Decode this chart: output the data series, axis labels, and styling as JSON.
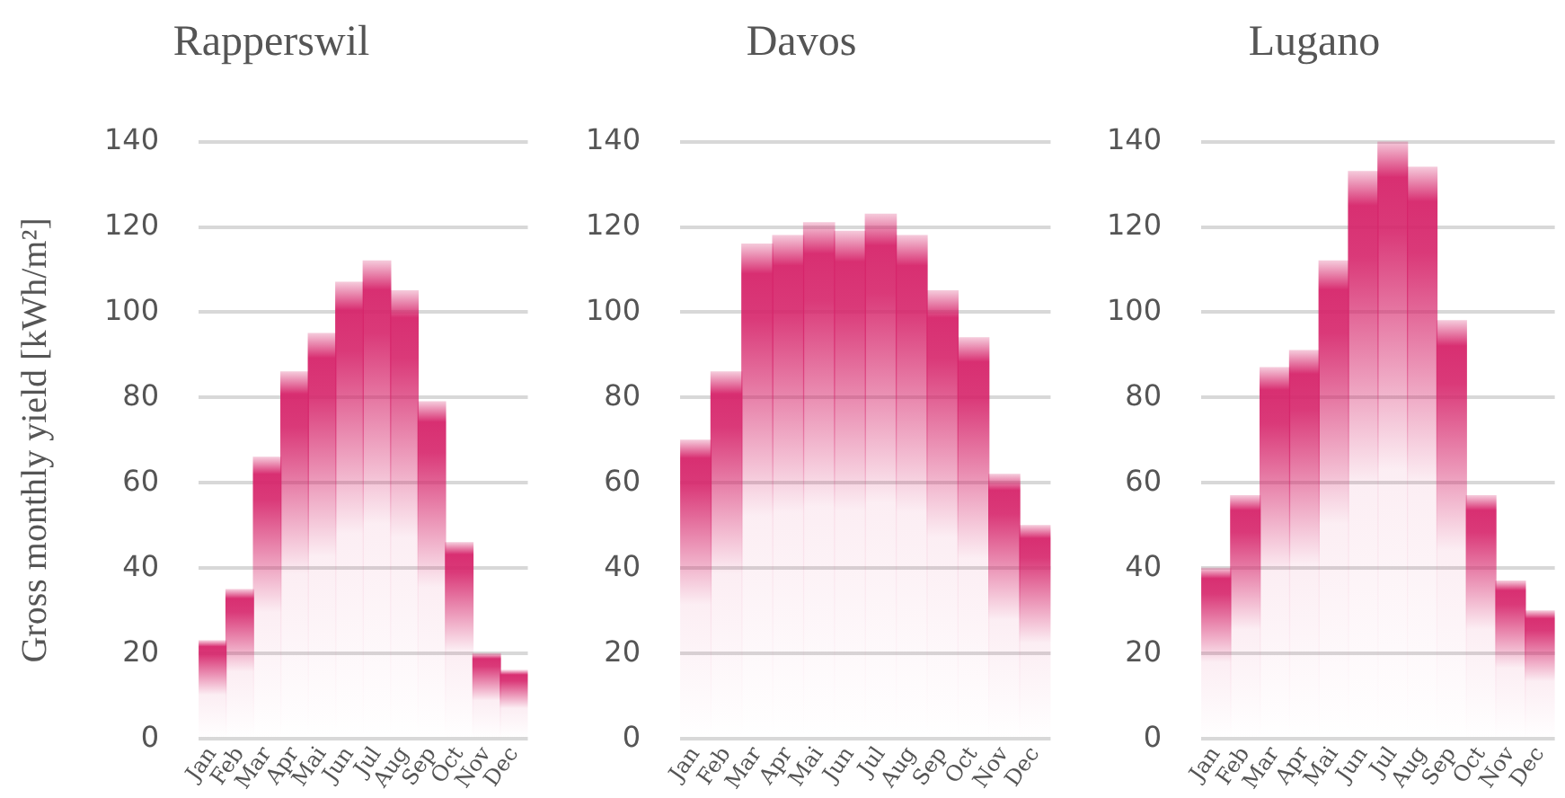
{
  "chart_data": [
    {
      "type": "bar",
      "title": "Rapperswil",
      "ylabel": "Gross monthly yield [kWh/m²]",
      "categories": [
        "Jan",
        "Feb",
        "Mar",
        "Apr",
        "Mai",
        "Jun",
        "Jul",
        "Aug",
        "Sep",
        "Oct",
        "Nov",
        "Dec"
      ],
      "color": "#d6246a",
      "values": [
        23,
        35,
        66,
        86,
        95,
        107,
        112,
        105,
        79,
        46,
        20,
        16
      ],
      "ylim": [
        0,
        140
      ],
      "yticks": [
        0,
        20,
        40,
        60,
        80,
        100,
        120,
        140
      ],
      "grid": "y"
    },
    {
      "type": "bar",
      "title": "Davos",
      "categories": [
        "Jan",
        "Feb",
        "Mar",
        "Apr",
        "Mai",
        "Jun",
        "Jul",
        "Aug",
        "Sep",
        "Oct",
        "Nov",
        "Dec"
      ],
      "color": "#d6246a",
      "values": [
        70,
        86,
        116,
        118,
        121,
        119,
        123,
        118,
        105,
        94,
        62,
        50
      ],
      "ylim": [
        0,
        140
      ],
      "yticks": [
        0,
        20,
        40,
        60,
        80,
        100,
        120,
        140
      ],
      "grid": "y"
    },
    {
      "type": "bar",
      "title": "Lugano",
      "categories": [
        "Jan",
        "Feb",
        "Mar",
        "Apr",
        "Mai",
        "Jun",
        "Jul",
        "Aug",
        "Sep",
        "Oct",
        "Nov",
        "Dec"
      ],
      "color": "#d6246a",
      "values": [
        40,
        57,
        87,
        91,
        112,
        133,
        140,
        134,
        98,
        57,
        37,
        30
      ],
      "ylim": [
        0,
        140
      ],
      "yticks": [
        0,
        20,
        40,
        60,
        80,
        100,
        120,
        140
      ],
      "grid": "y"
    }
  ]
}
